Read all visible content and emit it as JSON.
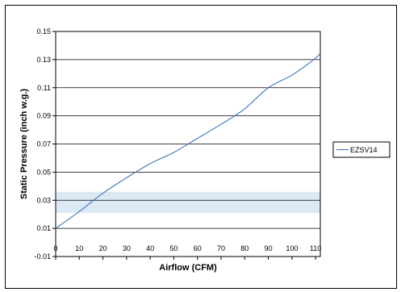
{
  "chart_data": {
    "type": "line",
    "xlabel": "Airflow (CFM)",
    "ylabel": "Static Pressure (inch w.g.)",
    "xlim": [
      0,
      112
    ],
    "ylim": [
      -0.01,
      0.15
    ],
    "x_ticks": [
      0,
      10,
      20,
      30,
      40,
      50,
      60,
      70,
      80,
      90,
      100,
      110
    ],
    "x_tick_labels": [
      "0",
      "10",
      "20",
      "30",
      "40",
      "50",
      "60",
      "70",
      "80",
      "90",
      "100",
      "110"
    ],
    "y_ticks": [
      -0.01,
      0.01,
      0.03,
      0.05,
      0.07,
      0.09,
      0.11,
      0.13,
      0.15
    ],
    "y_tick_labels": [
      "-0.01",
      "0.01",
      "0.03",
      "0.05",
      "0.07",
      "0.09",
      "0.11",
      "0.13",
      "0.15"
    ],
    "grid": "horizontal",
    "legend_position": "right",
    "highlight_band": {
      "y_range": [
        0.021,
        0.036
      ],
      "color": "#dbe9f4"
    },
    "series": [
      {
        "name": "EZSV14",
        "color": "#3f74b8",
        "x": [
          0,
          10,
          20,
          30,
          40,
          50,
          60,
          70,
          80,
          90,
          100,
          110,
          112
        ],
        "y": [
          0.01,
          0.022,
          0.035,
          0.046,
          0.056,
          0.064,
          0.074,
          0.084,
          0.095,
          0.11,
          0.119,
          0.131,
          0.135
        ]
      }
    ]
  }
}
